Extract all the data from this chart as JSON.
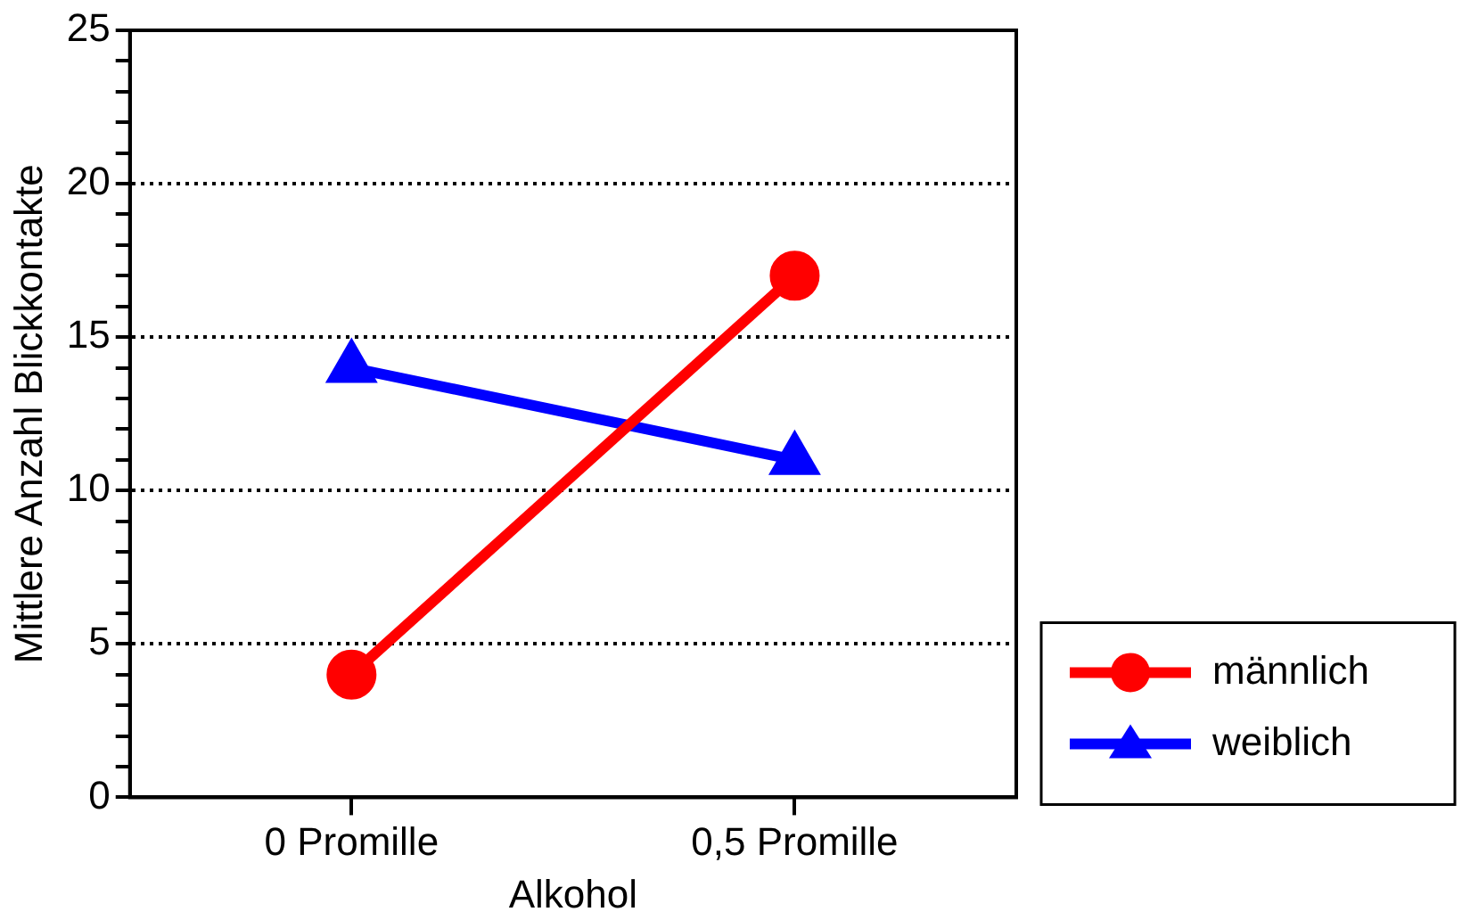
{
  "chart_data": {
    "type": "line",
    "xlabel": "Alkohol",
    "ylabel": "Mittlere Anzahl Blickkontakte",
    "categories": [
      "0 Promille",
      "0,5 Promille"
    ],
    "series": [
      {
        "name": "männlich",
        "color": "#ff0000",
        "values": [
          4,
          17
        ],
        "marker": "circle"
      },
      {
        "name": "weiblich",
        "color": "#0000ff",
        "values": [
          14,
          11
        ],
        "marker": "triangle"
      }
    ],
    "ylim": [
      0,
      25
    ],
    "yticks": [
      0,
      {
        "value": 1,
        "label": null
      },
      {
        "value": 2,
        "label": null
      },
      {
        "value": 3,
        "label": null
      },
      {
        "value": 4,
        "label": null
      },
      5,
      {
        "value": 6,
        "label": null
      },
      {
        "value": 7,
        "label": null
      },
      {
        "value": 8,
        "label": null
      },
      {
        "value": 9,
        "label": null
      },
      10,
      {
        "value": 11,
        "label": null
      },
      {
        "value": 12,
        "label": null
      },
      {
        "value": 13,
        "label": null
      },
      {
        "value": 14,
        "label": null
      },
      15,
      {
        "value": 16,
        "label": null
      },
      {
        "value": 17,
        "label": null
      },
      {
        "value": 18,
        "label": null
      },
      {
        "value": 19,
        "label": null
      },
      20,
      {
        "value": 21,
        "label": null
      },
      {
        "value": 22,
        "label": null
      },
      {
        "value": 23,
        "label": null
      },
      {
        "value": 24,
        "label": null
      },
      25
    ],
    "grid": "y",
    "line_style": "solid",
    "legend": "bottom right"
  }
}
